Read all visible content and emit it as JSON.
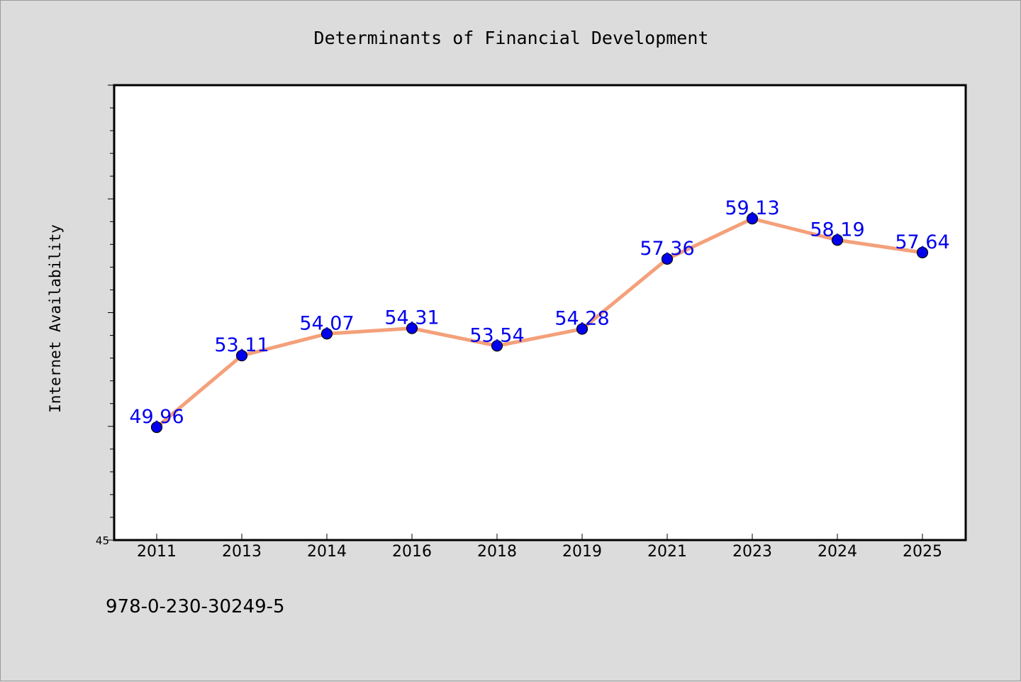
{
  "chart_data": {
    "type": "line",
    "title": "Determinants of Financial Development",
    "ylabel": "Internet Availability",
    "xlabel": "",
    "categories": [
      "2011",
      "2013",
      "2014",
      "2016",
      "2018",
      "2019",
      "2021",
      "2023",
      "2024",
      "2025"
    ],
    "series": [
      {
        "values": [
          49.96,
          53.11,
          54.07,
          54.31,
          53.54,
          54.28,
          57.36,
          59.13,
          58.19,
          57.64
        ],
        "labels": [
          "49.96",
          "53.11",
          "54.07",
          "54.31",
          "53.54",
          "54.28",
          "57.36",
          "59.13",
          "58.19",
          "57.64"
        ],
        "line_color": "#f4a07a",
        "marker_color": "#0000ee",
        "label_color": "#0000ee"
      }
    ],
    "ylim": [
      45,
      65
    ],
    "y_tick_labels": [
      "45"
    ],
    "grid": false,
    "legend": "none"
  },
  "footer": {
    "code": "978-0-230-30249-5"
  },
  "colors": {
    "background": "#dcdcdc",
    "plot_background": "#ffffff",
    "axis": "#000000"
  }
}
